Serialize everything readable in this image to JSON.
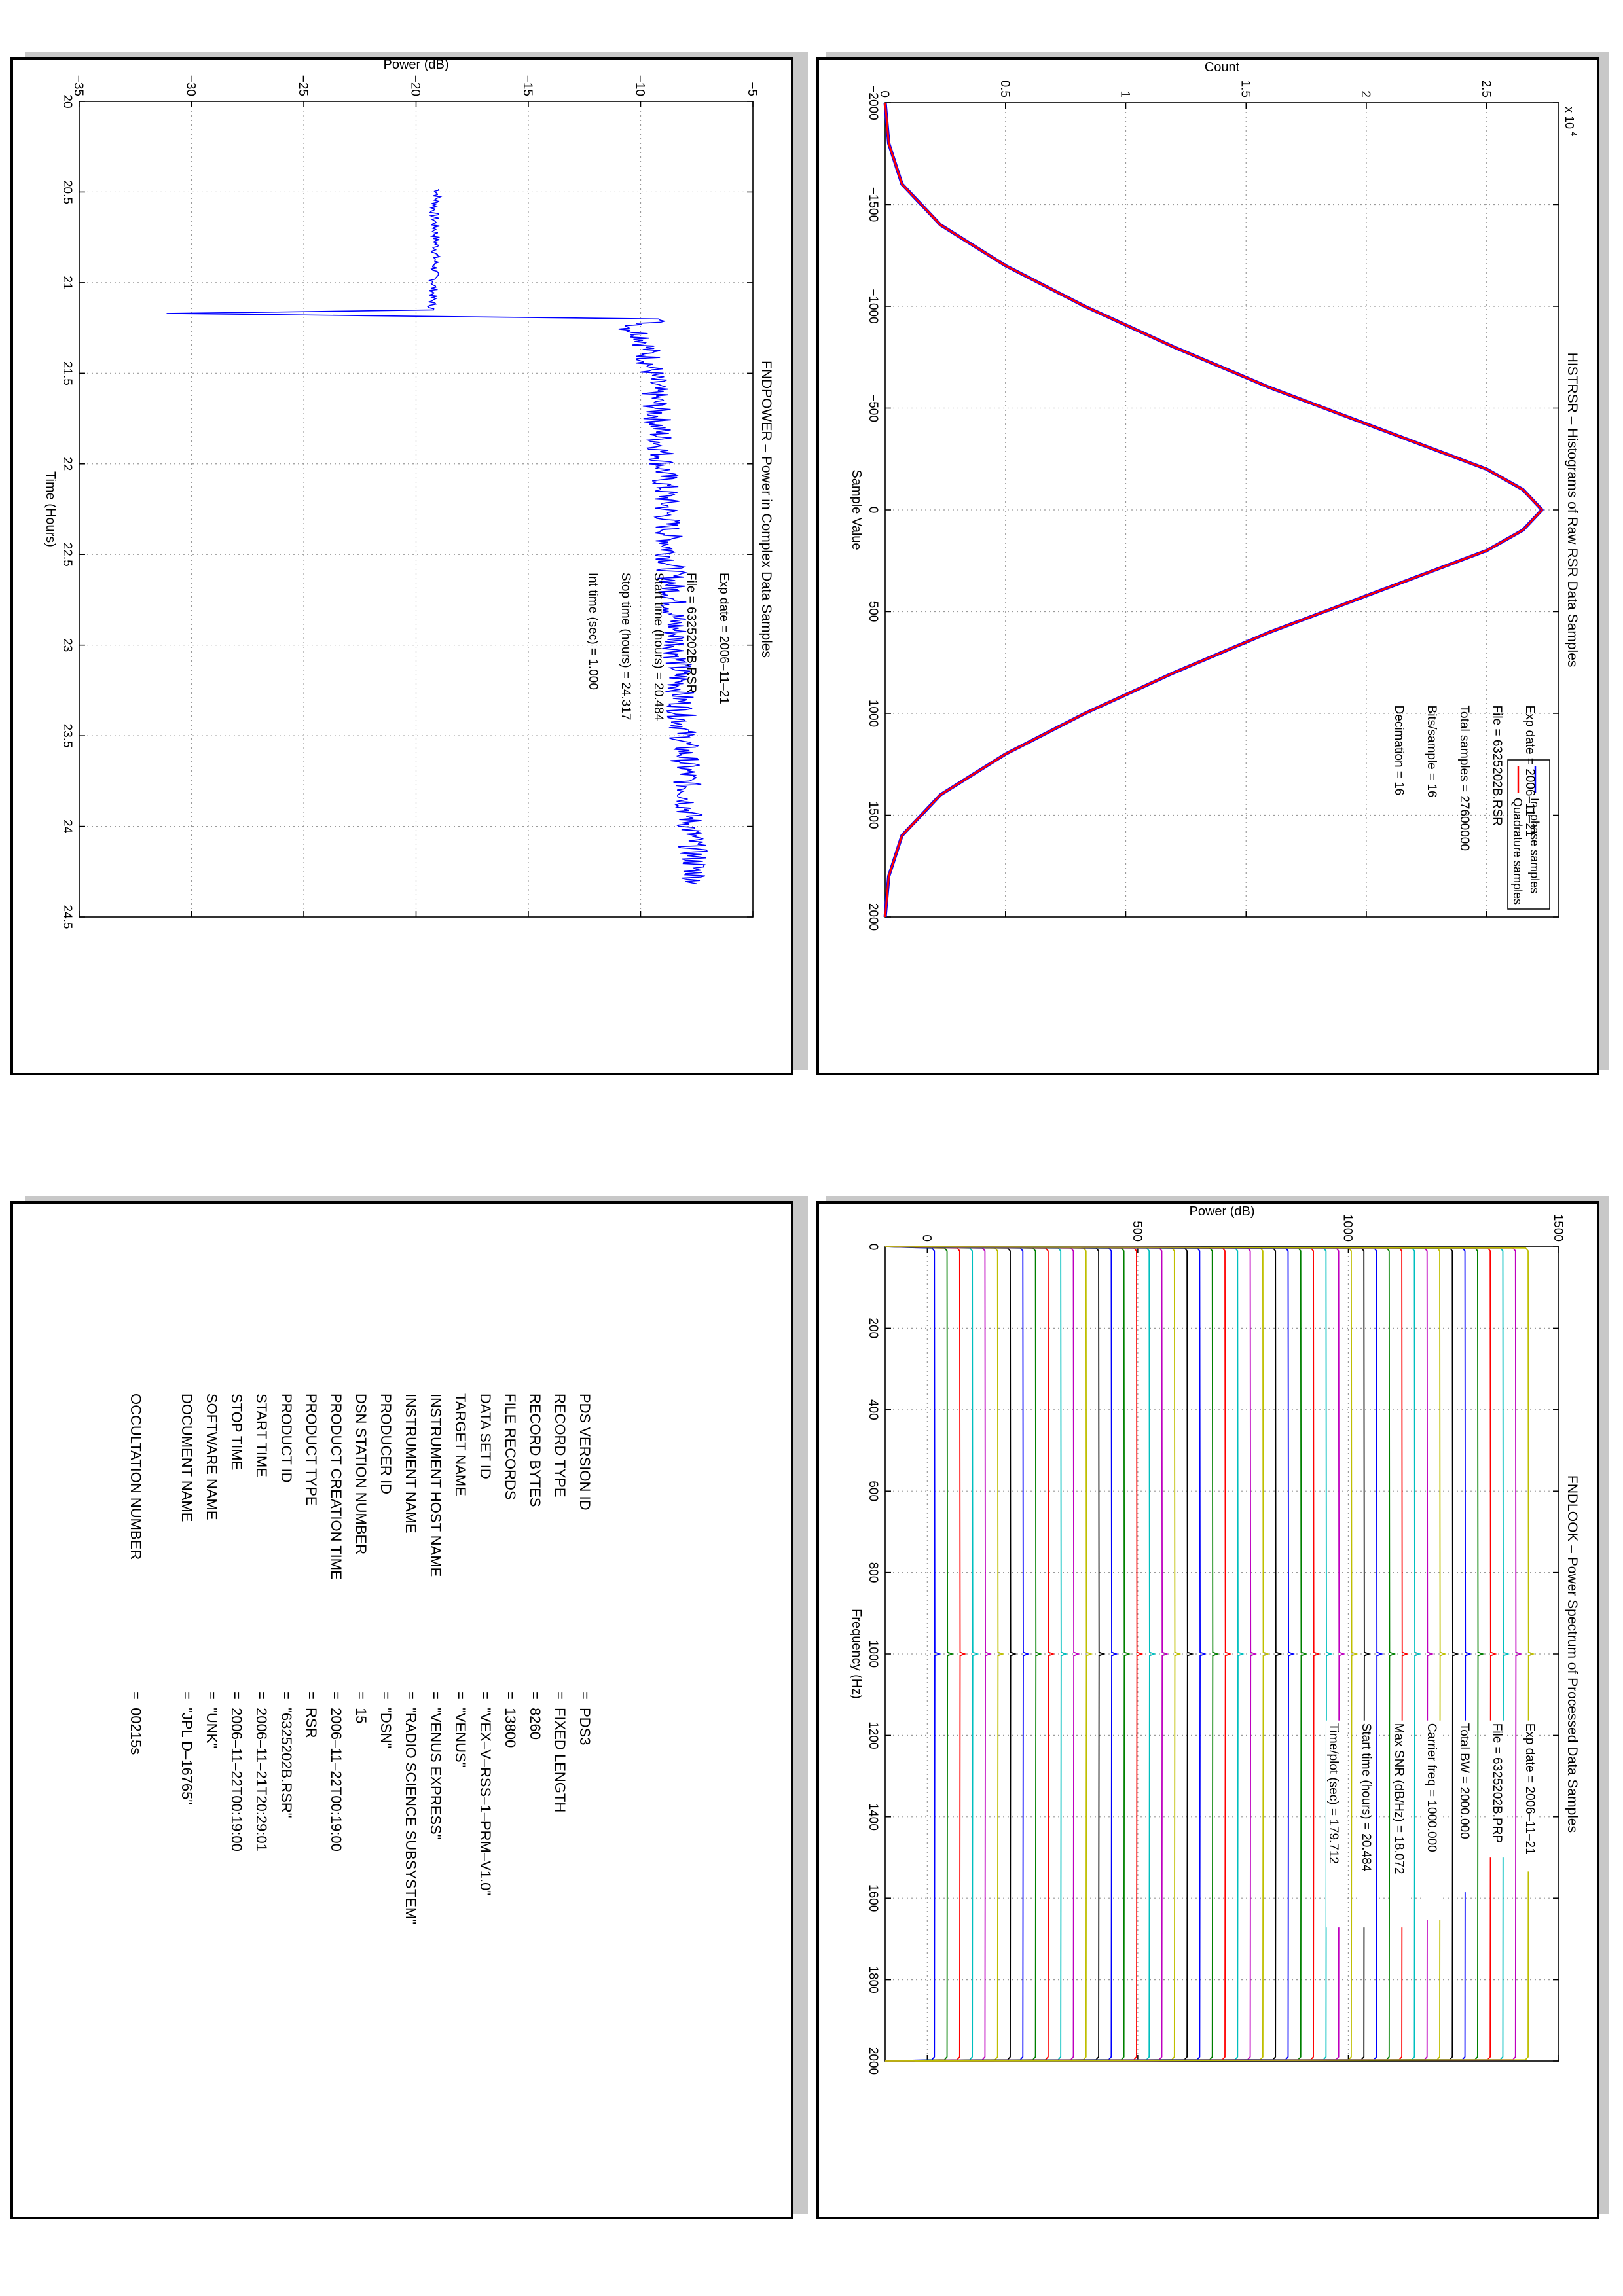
{
  "chart_data": [
    {
      "id": "histrsr",
      "type": "line",
      "title": "HISTRSR – Histograms of Raw RSR Data Samples",
      "xlabel": "Sample Value",
      "ylabel": "Count",
      "y_exponent": "x 10",
      "y_exponent_power": "4",
      "xlim": [
        -2000,
        2000
      ],
      "ylim": [
        0,
        28000
      ],
      "xticks": [
        "−2000",
        "−1500",
        "−1000",
        "−500",
        "0",
        "500",
        "1000",
        "1500",
        "2000"
      ],
      "yticks": [
        "0",
        "0.5",
        "1",
        "1.5",
        "2",
        "2.5"
      ],
      "grid": true,
      "legend_position": "top-right",
      "series": [
        {
          "name": "In–phase samples",
          "color": "#0000ff",
          "x": [
            -2000,
            -1800,
            -1600,
            -1400,
            -1200,
            -1000,
            -800,
            -600,
            -400,
            -200,
            -100,
            0,
            100,
            200,
            400,
            600,
            800,
            1000,
            1200,
            1400,
            1600,
            1800,
            2000
          ],
          "values": [
            0,
            150,
            700,
            2300,
            5000,
            8300,
            12000,
            16000,
            20500,
            25000,
            26500,
            27300,
            26500,
            25000,
            20500,
            16000,
            12000,
            8300,
            5000,
            2300,
            700,
            150,
            0
          ]
        },
        {
          "name": "Quadrature samples",
          "color": "#ff0000",
          "x": [
            -2000,
            -1800,
            -1600,
            -1400,
            -1200,
            -1000,
            -800,
            -600,
            -400,
            -200,
            -100,
            0,
            100,
            200,
            400,
            600,
            800,
            1000,
            1200,
            1400,
            1600,
            1800,
            2000
          ],
          "values": [
            0,
            150,
            700,
            2300,
            5000,
            8300,
            12000,
            16000,
            20500,
            25000,
            26500,
            27300,
            26500,
            25000,
            20500,
            16000,
            12000,
            8300,
            5000,
            2300,
            700,
            150,
            0
          ]
        }
      ],
      "annotations": [
        {
          "label": "Exp date = 2006–11–21"
        },
        {
          "label": "File = 6325202B.RSR"
        },
        {
          "label": "Total samples =   27600000"
        },
        {
          "label": "Bits/sample    =        16"
        },
        {
          "label": "Decimation     =        16"
        }
      ]
    },
    {
      "id": "fndpower",
      "type": "line",
      "title": "FNDPOWER – Power in Complex Data Samples",
      "xlabel": "Time (Hours)",
      "ylabel": "Power (dB)",
      "xlim": [
        20,
        24.5
      ],
      "ylim": [
        -35,
        -5
      ],
      "xticks": [
        "20",
        "20.5",
        "21",
        "21.5",
        "22",
        "22.5",
        "23",
        "23.5",
        "24",
        "24.5"
      ],
      "yticks": [
        "−35",
        "−30",
        "−25",
        "−20",
        "−15",
        "−10",
        "−5"
      ],
      "grid": true,
      "series": [
        {
          "name": "",
          "color": "#0000ff",
          "x": [
            20.484,
            20.6,
            20.8,
            21.0,
            21.15,
            21.17,
            21.2,
            21.25,
            21.3,
            21.5,
            22.0,
            22.5,
            23.0,
            23.5,
            24.0,
            24.317
          ],
          "values": [
            -19.0,
            -19.2,
            -19.1,
            -19.2,
            -19.3,
            -31.0,
            -9.0,
            -10.5,
            -9.8,
            -9.5,
            -9.0,
            -8.7,
            -8.4,
            -8.1,
            -7.8,
            -7.5
          ]
        }
      ],
      "annotations": [
        {
          "label": "Exp date = 2006–11–21"
        },
        {
          "label": "File = 6325202B.RSR"
        },
        {
          "label": "Start time (hours) = 20.484"
        },
        {
          "label": "Stop time (hours)  = 24.317"
        },
        {
          "label": "Int time (sec)  =     1.000"
        }
      ]
    },
    {
      "id": "fndlook",
      "type": "line",
      "title": "FNDLOOK – Power Spectrum of Processed Data Samples",
      "xlabel": "Frequency (Hz)",
      "ylabel": "Power (dB)",
      "xlim": [
        0,
        2000
      ],
      "ylim": [
        -100,
        1500
      ],
      "xticks": [
        "0",
        "200",
        "400",
        "600",
        "800",
        "1000",
        "1200",
        "1400",
        "1600",
        "1800",
        "2000"
      ],
      "yticks": [
        "0",
        "500",
        "1000",
        "1500"
      ],
      "grid": true,
      "stacked_spectra": {
        "count": 48,
        "offset_step": 30,
        "base_level": 15,
        "spike_frequency_hz": 1000
      },
      "colors": [
        "#0000ff",
        "#008000",
        "#ff0000",
        "#00bfbf",
        "#bf00bf",
        "#bfbf00",
        "#000000"
      ],
      "annotations": [
        {
          "label": "Exp date = 2006–11–21"
        },
        {
          "label": "File = 6325202B.PRP"
        },
        {
          "label": "Total BW =      2000.000"
        },
        {
          "label": "Carrier freq =      1000.000"
        },
        {
          "label": "Max SNR (dB/Hz) =      18.072"
        },
        {
          "label": "Start time (hours) =   20.484"
        },
        {
          "label": "Time/plot (sec) =     179.712"
        }
      ]
    }
  ],
  "label_table": {
    "rows": [
      {
        "key": "PDS VERSION ID",
        "value": "=  PDS3"
      },
      {
        "key": "RECORD TYPE",
        "value": "=  FIXED LENGTH"
      },
      {
        "key": "RECORD BYTES",
        "value": "=  8260"
      },
      {
        "key": "FILE RECORDS",
        "value": "=  13800"
      },
      {
        "key": "DATA SET ID",
        "value": "=  \"VEX–V–RSS–1–PRM–V1.0\""
      },
      {
        "key": "TARGET NAME",
        "value": "=  \"VENUS\""
      },
      {
        "key": "INSTRUMENT HOST NAME",
        "value": "=  \"VENUS EXPRESS\""
      },
      {
        "key": "INSTRUMENT NAME",
        "value": "=  \"RADIO SCIENCE SUBSYSTEM\""
      },
      {
        "key": "PRODUCER ID",
        "value": "=  \"DSN\""
      },
      {
        "key": "DSN STATION NUMBER",
        "value": "=  15"
      },
      {
        "key": "PRODUCT CREATION TIME",
        "value": "=  2006–11–22T00:19:00"
      },
      {
        "key": "PRODUCT TYPE",
        "value": "=  RSR"
      },
      {
        "key": "PRODUCT ID",
        "value": "=  \"6325202B.RSR\""
      },
      {
        "key": "START TIME",
        "value": "=  2006–11–21T20:29:01"
      },
      {
        "key": "STOP TIME",
        "value": "=  2006–11–22T00:19:00"
      },
      {
        "key": "SOFTWARE NAME",
        "value": "=  \"UNK\""
      },
      {
        "key": "DOCUMENT NAME",
        "value": "=  \"JPL D–16765\""
      },
      {
        "key": "OCCULTATION NUMBER",
        "value": "=  00215s"
      }
    ]
  }
}
